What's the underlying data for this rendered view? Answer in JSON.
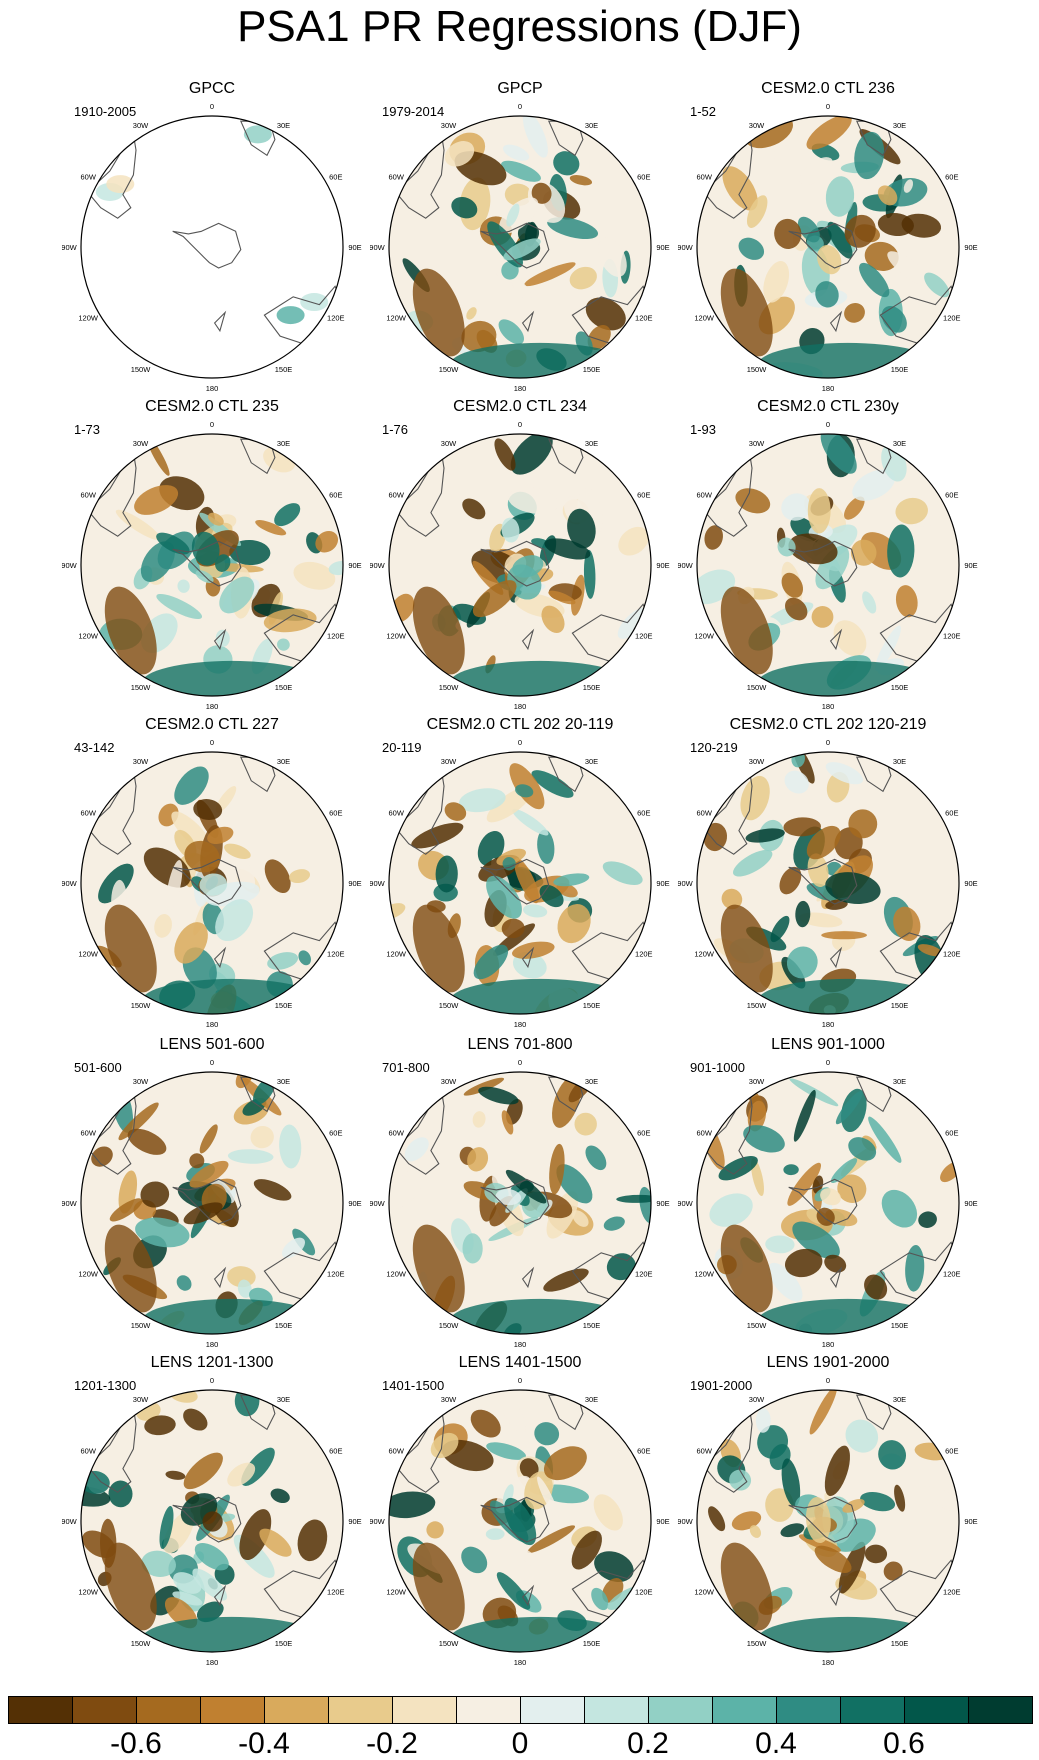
{
  "title": "PSA1 PR Regressions (DJF)",
  "longitude_labels": [
    "0",
    "30E",
    "60E",
    "90E",
    "120E",
    "150E",
    "180",
    "150W",
    "120W",
    "90W",
    "60W",
    "30W"
  ],
  "panels": [
    {
      "title": "GPCC",
      "period": "1910-2005",
      "ocean_data": false
    },
    {
      "title": "GPCP",
      "period": "1979-2014",
      "ocean_data": true
    },
    {
      "title": "CESM2.0 CTL 236",
      "period": "1-52",
      "ocean_data": true
    },
    {
      "title": "CESM2.0 CTL 235",
      "period": "1-73",
      "ocean_data": true
    },
    {
      "title": "CESM2.0 CTL 234",
      "period": "1-76",
      "ocean_data": true
    },
    {
      "title": "CESM2.0 CTL 230y",
      "period": "1-93",
      "ocean_data": true
    },
    {
      "title": "CESM2.0 CTL 227",
      "period": "43-142",
      "ocean_data": true
    },
    {
      "title": "CESM2.0 CTL 202 20-119",
      "period": "20-119",
      "ocean_data": true
    },
    {
      "title": "CESM2.0 CTL 202 120-219",
      "period": "120-219",
      "ocean_data": true
    },
    {
      "title": "LENS 501-600",
      "period": "501-600",
      "ocean_data": true
    },
    {
      "title": "LENS 701-800",
      "period": "701-800",
      "ocean_data": true
    },
    {
      "title": "LENS 901-1000",
      "period": "901-1000",
      "ocean_data": true
    },
    {
      "title": "LENS 1201-1300",
      "period": "1201-1300",
      "ocean_data": true
    },
    {
      "title": "LENS 1401-1500",
      "period": "1401-1500",
      "ocean_data": true
    },
    {
      "title": "LENS 1901-2000",
      "period": "1901-2000",
      "ocean_data": true
    }
  ],
  "colorbar": {
    "colors": [
      "#543005",
      "#7f4b10",
      "#a56a1f",
      "#c08030",
      "#d9aa5c",
      "#e8cb8c",
      "#f4e3c0",
      "#f6efe3",
      "#e3efee",
      "#c4e6e0",
      "#92d0c5",
      "#5cb3a8",
      "#2f8c83",
      "#117063",
      "#02574a",
      "#003c30"
    ],
    "labels": [
      "-0.6",
      "-0.4",
      "-0.2",
      "0",
      "0.2",
      "0.4",
      "0.6"
    ],
    "label_bins": [
      2,
      4,
      6,
      8,
      10,
      12,
      14
    ]
  },
  "colors": {
    "coastline": "#555555",
    "anomaly_negative": "#a56a1f",
    "anomaly_positive": "#117063"
  }
}
